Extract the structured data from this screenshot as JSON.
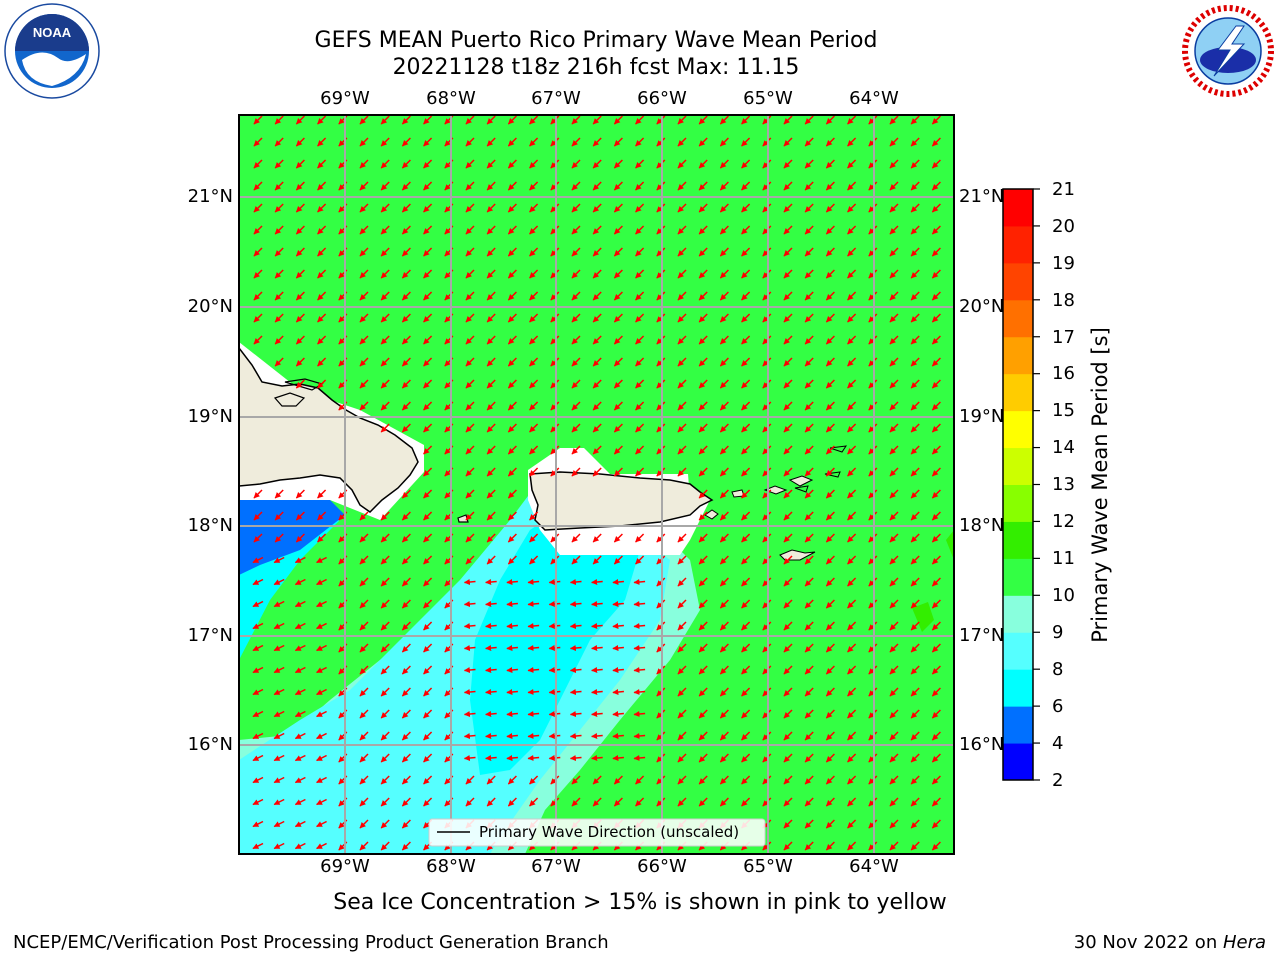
{
  "title": {
    "line1": "GEFS MEAN Puerto Rico Primary Wave Mean Period",
    "line2": "20221128 t18z 216h fcst   Max: 11.15"
  },
  "logos": {
    "left": "NOAA",
    "right": "NATIONAL WEATHER SERVICE"
  },
  "axes": {
    "lon_ticks": [
      "69°W",
      "68°W",
      "67°W",
      "66°W",
      "65°W",
      "64°W"
    ],
    "lat_ticks": [
      "21°N",
      "20°N",
      "19°N",
      "18°N",
      "17°N",
      "16°N"
    ],
    "lon_range": [
      -70.0,
      -63.3
    ],
    "lat_range": [
      15.0,
      21.75
    ]
  },
  "colorbar": {
    "label": "Primary Wave Mean Period [s]",
    "ticks": [
      "21",
      "20",
      "19",
      "18",
      "17",
      "16",
      "15",
      "14",
      "13",
      "12",
      "11",
      "10",
      "9",
      "8",
      "6",
      "4",
      "2"
    ],
    "colors": [
      "#0000ff",
      "#0070ff",
      "#00ffff",
      "#55ffff",
      "#88ffdd",
      "#33ff44",
      "#33ee00",
      "#88ff00",
      "#ccff00",
      "#ffff00",
      "#ffcc00",
      "#ffa000",
      "#ff7000",
      "#ff4400",
      "#ff2200",
      "#ff0000"
    ]
  },
  "legend": {
    "label": "Primary Wave Direction (unscaled)"
  },
  "note": "Sea Ice Concentration > 15% is shown in pink to yellow",
  "footer": {
    "left": "NCEP/EMC/Verification Post Processing Product Generation Branch",
    "date": "30 Nov 2022 on ",
    "machine": "Hera"
  },
  "colors": {
    "ocean_green": "#33ff44",
    "land": "#efecdc",
    "arrow": "#ff0000"
  }
}
